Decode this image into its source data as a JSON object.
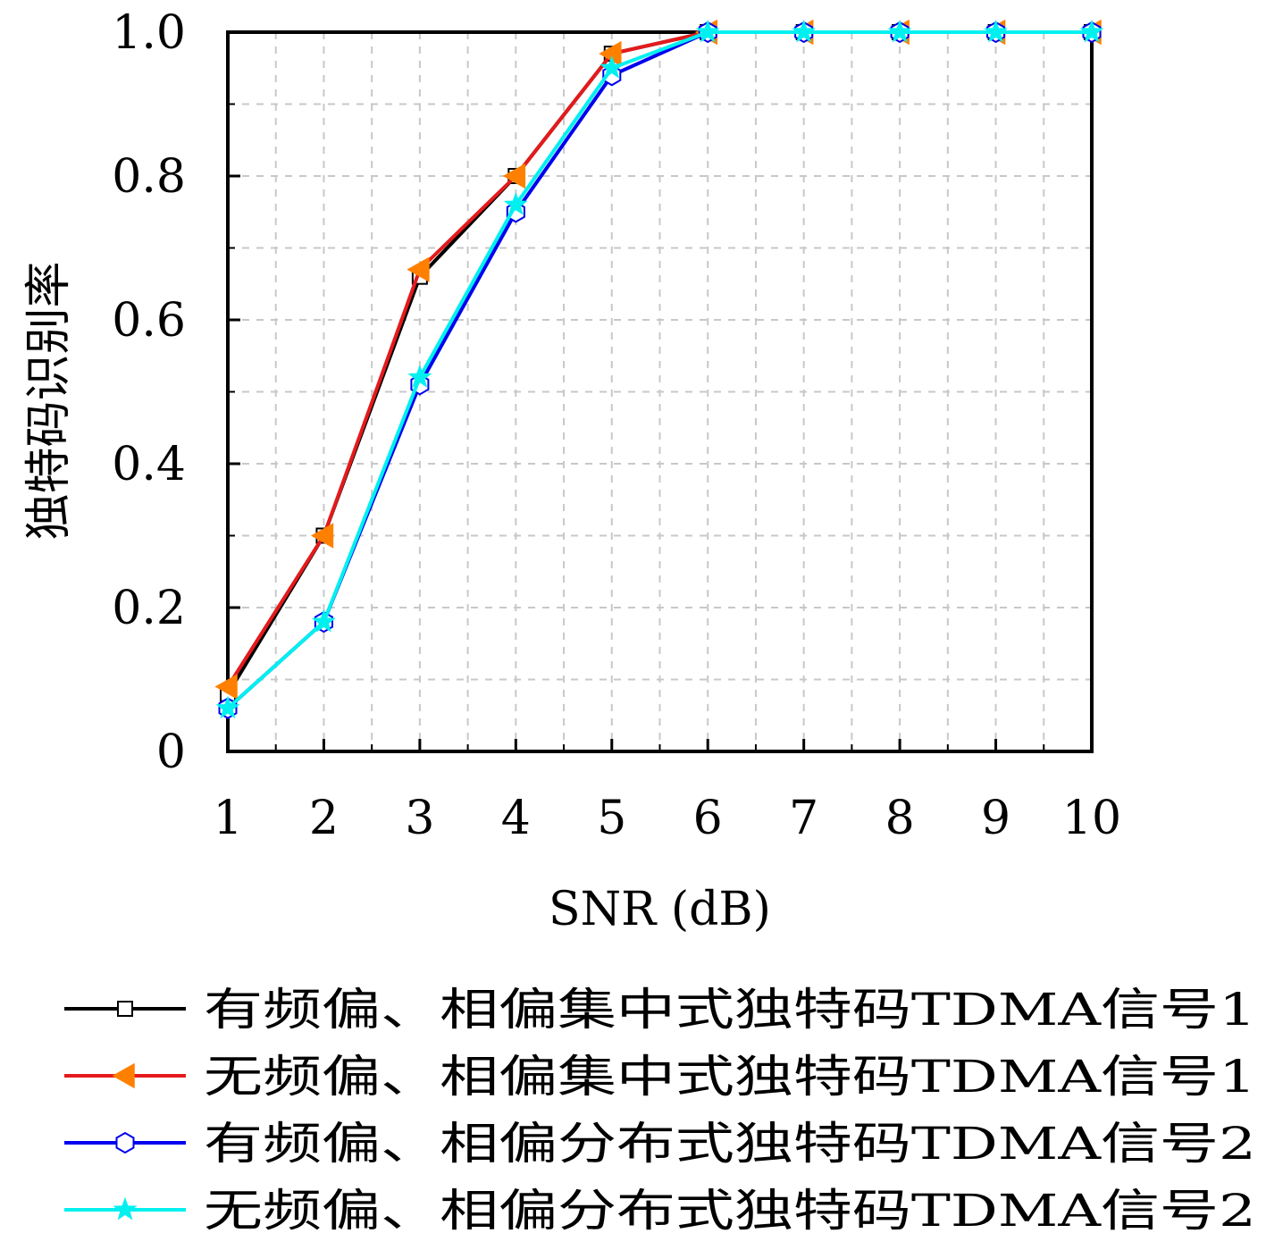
{
  "chart_data": {
    "type": "line",
    "xlabel": "SNR (dB)",
    "ylabel": "独特码识别率",
    "x": [
      1,
      2,
      3,
      4,
      5,
      6,
      7,
      8,
      9,
      10
    ],
    "xlim": [
      1,
      10
    ],
    "ylim": [
      0,
      1
    ],
    "x_ticks": [
      "1",
      "2",
      "3",
      "4",
      "5",
      "6",
      "7",
      "8",
      "9",
      "10"
    ],
    "y_ticks": [
      {
        "value": 0,
        "label": "0"
      },
      {
        "value": 0.2,
        "label": "0.2"
      },
      {
        "value": 0.4,
        "label": "0.4"
      },
      {
        "value": 0.6,
        "label": "0.6"
      },
      {
        "value": 0.8,
        "label": "0.8"
      },
      {
        "value": 1.0,
        "label": "1.0"
      }
    ],
    "grid": true,
    "legend_position": "bottom",
    "series": [
      {
        "name": "有频偏、相偏集中式独特码TDMA信号1",
        "color": "#000000",
        "marker": "square",
        "marker_fill": "#ffffff",
        "values": [
          0.08,
          0.3,
          0.66,
          0.8,
          0.97,
          1.0,
          1.0,
          1.0,
          1.0,
          1.0
        ]
      },
      {
        "name": "无频偏、相偏集中式独特码TDMA信号1",
        "color": "#e41a1c",
        "marker": "triangle-left",
        "marker_fill": "#ff8000",
        "values": [
          0.09,
          0.3,
          0.67,
          0.8,
          0.97,
          1.0,
          1.0,
          1.0,
          1.0,
          1.0
        ]
      },
      {
        "name": "有频偏、相偏分布式独特码TDMA信号2",
        "color": "#0000ee",
        "marker": "hexagon",
        "marker_fill": "#ffffff",
        "values": [
          0.06,
          0.18,
          0.51,
          0.75,
          0.94,
          1.0,
          1.0,
          1.0,
          1.0,
          1.0
        ]
      },
      {
        "name": "无频偏、相偏分布式独特码TDMA信号2",
        "color": "#00f0f0",
        "marker": "star",
        "marker_fill": "#00f0f0",
        "values": [
          0.06,
          0.18,
          0.52,
          0.76,
          0.95,
          1.0,
          1.0,
          1.0,
          1.0,
          1.0
        ]
      }
    ]
  }
}
